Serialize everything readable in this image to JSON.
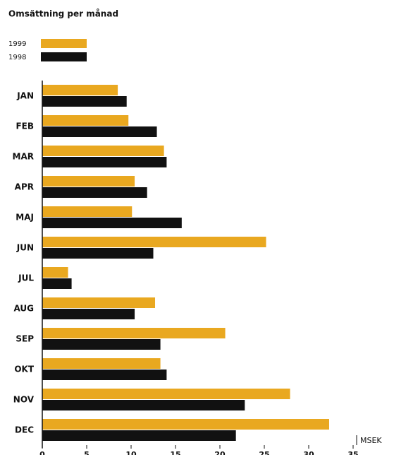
{
  "chart_data": {
    "type": "barh",
    "title": "Omsättning per månad",
    "categories": [
      "JAN",
      "FEB",
      "MAR",
      "APR",
      "MAJ",
      "JUN",
      "JUL",
      "AUG",
      "SEP",
      "OKT",
      "NOV",
      "DEC"
    ],
    "series": [
      {
        "name": "1999",
        "color": "#e9a820",
        "values": [
          8.5,
          9.7,
          13.7,
          10.4,
          10.1,
          25.2,
          2.9,
          12.7,
          20.6,
          13.3,
          27.9,
          32.3
        ]
      },
      {
        "name": "1998",
        "color": "#111111",
        "values": [
          9.5,
          12.9,
          14.0,
          11.8,
          15.7,
          12.5,
          3.3,
          10.4,
          13.3,
          14.0,
          22.8,
          21.8
        ]
      }
    ],
    "xlabel": "MSEK",
    "xlim": [
      0,
      35
    ],
    "xticks": [
      0,
      5,
      10,
      15,
      20,
      25,
      30,
      35
    ]
  }
}
